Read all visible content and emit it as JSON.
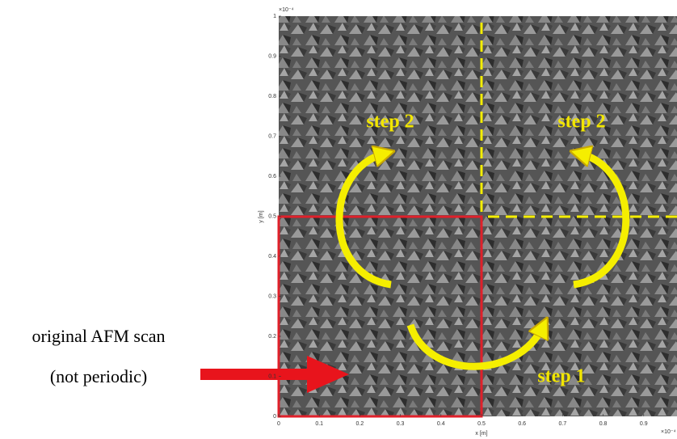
{
  "axes": {
    "x_label": "x [m]",
    "y_label": "y [m]",
    "x_exponent": "×10⁻⁴",
    "y_exponent": "×10⁻⁴",
    "xticks": [
      0,
      0.1,
      0.2,
      0.3,
      0.4,
      0.5,
      0.6,
      0.7,
      0.8,
      0.9
    ],
    "yticks": [
      0,
      0.1,
      0.2,
      0.3,
      0.4,
      0.5,
      0.6,
      0.7,
      0.8,
      0.9,
      1
    ]
  },
  "labels": {
    "step_2_left": "step 2",
    "step_2_right": "step 2",
    "step_1": "step 1",
    "scan_line1": "original AFM scan",
    "scan_line2": "(not periodic)"
  }
}
